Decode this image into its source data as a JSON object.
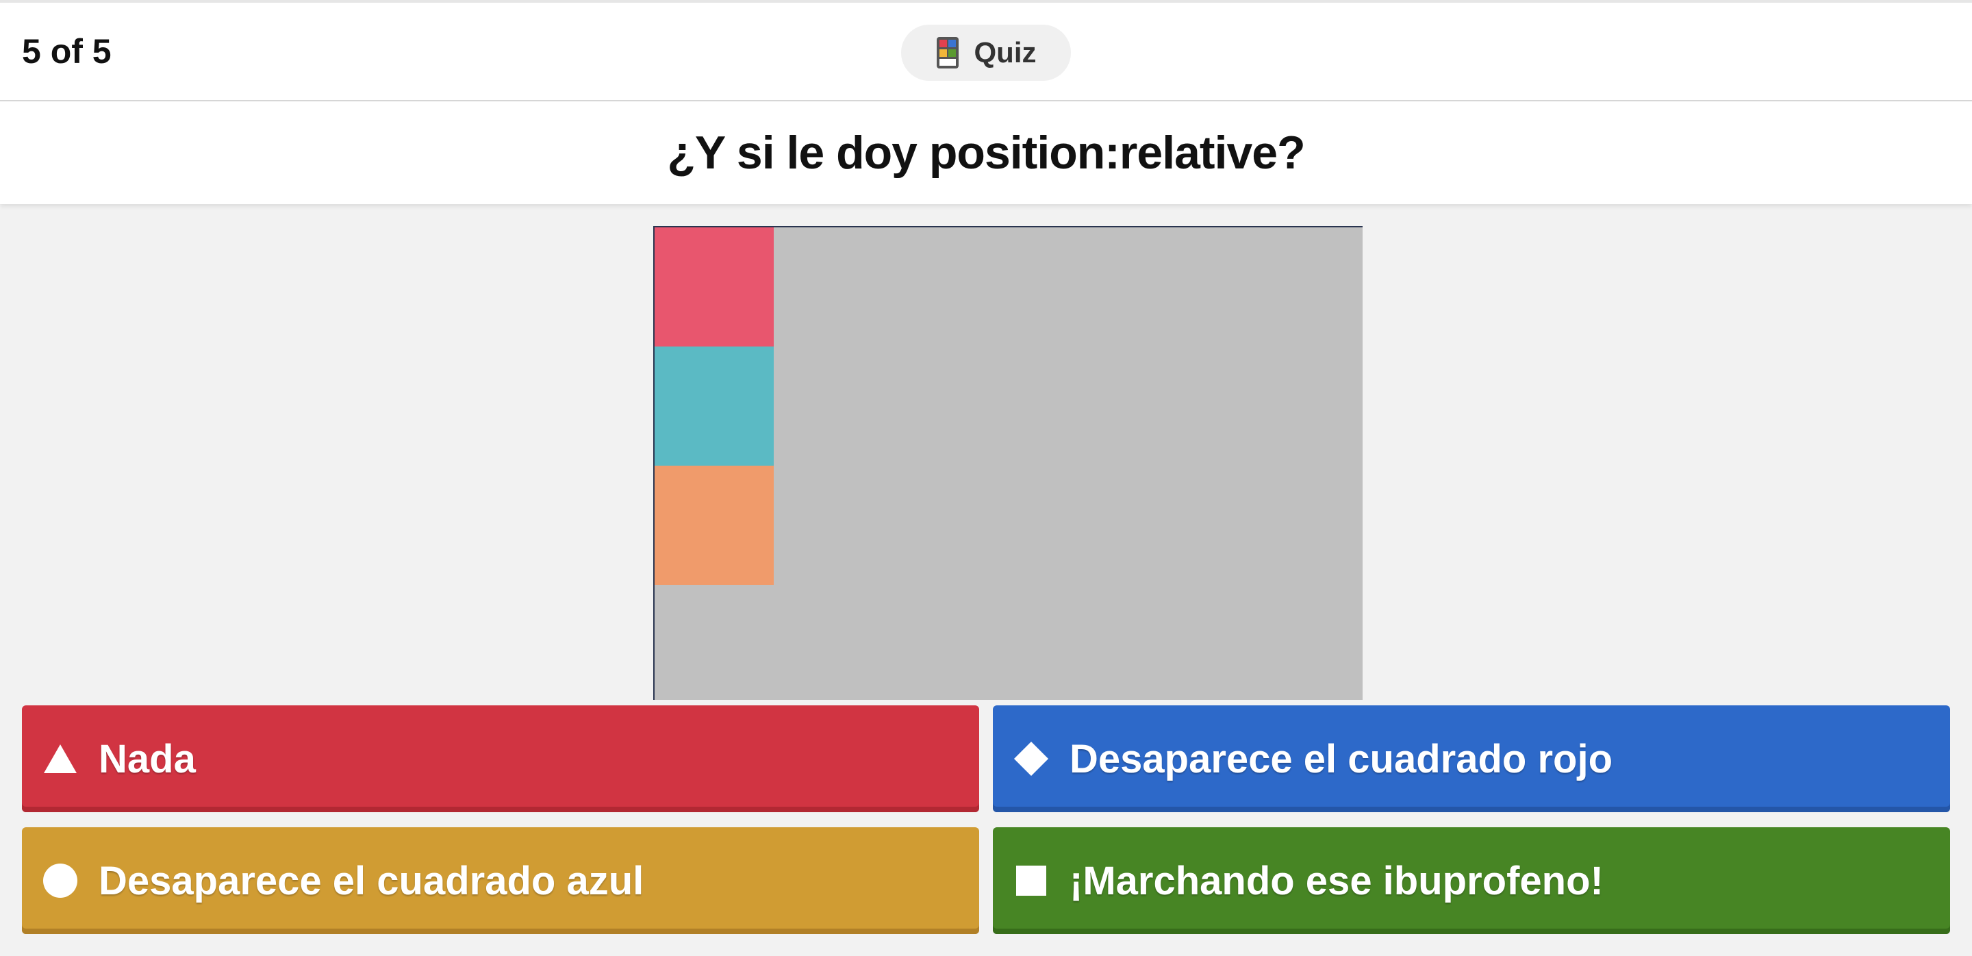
{
  "header": {
    "counter": "5 of 5",
    "quiz_label": "Quiz",
    "quiz_icon": "quiz-grid-icon"
  },
  "question": {
    "title": "¿Y si le doy position:relative?"
  },
  "media": {
    "background_color": "#c0c0c0",
    "squares": [
      {
        "name": "red-square",
        "color": "#e8566e"
      },
      {
        "name": "teal-square",
        "color": "#5bbac4"
      },
      {
        "name": "orange-square",
        "color": "#f09b6b"
      }
    ]
  },
  "answers": [
    {
      "label": "Nada",
      "shape": "triangle-icon",
      "color": "#d13442"
    },
    {
      "label": "Desaparece el cuadrado rojo",
      "shape": "diamond-icon",
      "color": "#2d69c9"
    },
    {
      "label": "Desaparece el cuadrado azul",
      "shape": "circle-icon",
      "color": "#d09c33"
    },
    {
      "label": "¡Marchando ese ibuprofeno!",
      "shape": "square-icon",
      "color": "#478524"
    }
  ]
}
